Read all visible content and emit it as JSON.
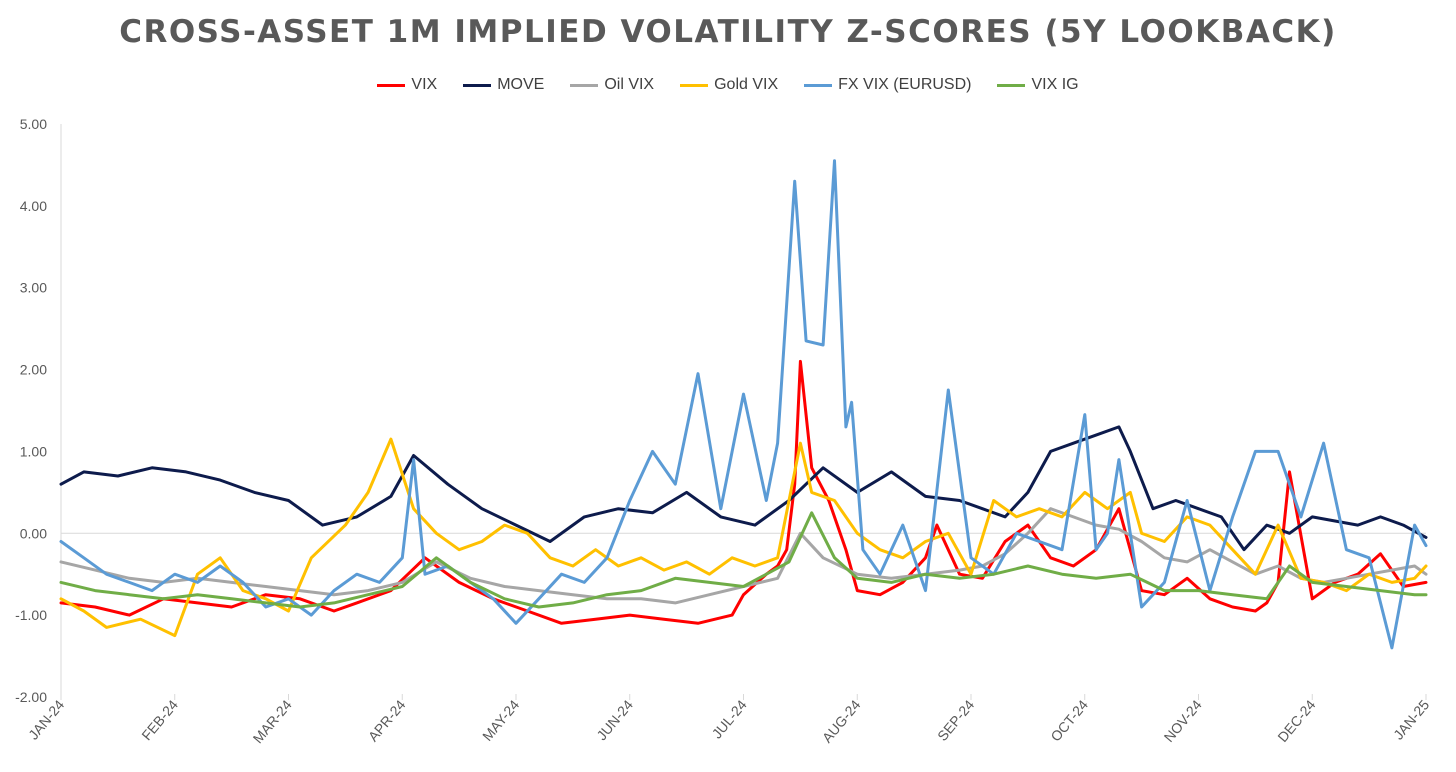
{
  "chart_data": {
    "type": "line",
    "title": "CROSS-ASSET 1M IMPLIED VOLATILITY Z-SCORES (5Y LOOKBACK)",
    "xlabel": "",
    "ylabel": "",
    "ylim": [
      -2.0,
      5.0
    ],
    "ytick_labels": [
      "5.00",
      "4.00",
      "3.00",
      "2.00",
      "1.00",
      "0.00",
      "-1.00",
      "-2.00"
    ],
    "ytick_values": [
      5,
      4,
      3,
      2,
      1,
      0,
      -1,
      -2
    ],
    "xlim": [
      0,
      12
    ],
    "xtick_labels": [
      "JAN-24",
      "FEB-24",
      "MAR-24",
      "APR-24",
      "MAY-24",
      "JUN-24",
      "JUL-24",
      "AUG-24",
      "SEP-24",
      "OCT-24",
      "NOV-24",
      "DEC-24",
      "JAN-25"
    ],
    "legend_position": "top-center",
    "grid": false,
    "series": [
      {
        "name": "VIX",
        "color": "#ff0000",
        "x": [
          0,
          0.3,
          0.6,
          0.9,
          1.2,
          1.5,
          1.8,
          2.1,
          2.4,
          2.6,
          2.9,
          3.2,
          3.5,
          3.8,
          4.1,
          4.4,
          4.7,
          5.0,
          5.3,
          5.6,
          5.9,
          6.0,
          6.2,
          6.3,
          6.38,
          6.45,
          6.5,
          6.6,
          6.75,
          6.9,
          7.0,
          7.2,
          7.4,
          7.6,
          7.7,
          7.9,
          8.1,
          8.3,
          8.5,
          8.7,
          8.9,
          9.1,
          9.3,
          9.5,
          9.7,
          9.9,
          10.1,
          10.3,
          10.5,
          10.6,
          10.7,
          10.8,
          11.0,
          11.2,
          11.4,
          11.6,
          11.8,
          12.0
        ],
        "values": [
          -0.85,
          -0.9,
          -1.0,
          -0.8,
          -0.85,
          -0.9,
          -0.75,
          -0.8,
          -0.95,
          -0.85,
          -0.7,
          -0.3,
          -0.6,
          -0.8,
          -0.95,
          -1.1,
          -1.05,
          -1.0,
          -1.05,
          -1.1,
          -1.0,
          -0.75,
          -0.5,
          -0.4,
          -0.2,
          0.6,
          2.1,
          0.8,
          0.4,
          -0.2,
          -0.7,
          -0.75,
          -0.6,
          -0.3,
          0.1,
          -0.5,
          -0.55,
          -0.1,
          0.1,
          -0.3,
          -0.4,
          -0.2,
          0.3,
          -0.7,
          -0.75,
          -0.55,
          -0.8,
          -0.9,
          -0.95,
          -0.85,
          -0.6,
          0.75,
          -0.8,
          -0.6,
          -0.5,
          -0.25,
          -0.65,
          -0.6
        ]
      },
      {
        "name": "MOVE",
        "color": "#0d1b4c",
        "x": [
          0,
          0.2,
          0.5,
          0.8,
          1.1,
          1.4,
          1.7,
          2.0,
          2.3,
          2.6,
          2.9,
          3.1,
          3.4,
          3.7,
          4.0,
          4.3,
          4.6,
          4.9,
          5.2,
          5.5,
          5.8,
          6.1,
          6.4,
          6.7,
          7.0,
          7.3,
          7.6,
          7.9,
          8.1,
          8.3,
          8.5,
          8.7,
          8.9,
          9.1,
          9.3,
          9.4,
          9.6,
          9.8,
          10.0,
          10.2,
          10.4,
          10.6,
          10.8,
          11.0,
          11.2,
          11.4,
          11.6,
          11.8,
          12.0
        ],
        "values": [
          0.6,
          0.75,
          0.7,
          0.8,
          0.75,
          0.65,
          0.5,
          0.4,
          0.1,
          0.2,
          0.45,
          0.95,
          0.6,
          0.3,
          0.1,
          -0.1,
          0.2,
          0.3,
          0.25,
          0.5,
          0.2,
          0.1,
          0.4,
          0.8,
          0.5,
          0.75,
          0.45,
          0.4,
          0.3,
          0.2,
          0.5,
          1.0,
          1.1,
          1.2,
          1.3,
          1.0,
          0.3,
          0.4,
          0.3,
          0.2,
          -0.2,
          0.1,
          0.0,
          0.2,
          0.15,
          0.1,
          0.2,
          0.1,
          -0.05
        ]
      },
      {
        "name": "Oil VIX",
        "color": "#a6a6a6",
        "x": [
          0,
          0.3,
          0.6,
          0.9,
          1.2,
          1.5,
          1.8,
          2.1,
          2.4,
          2.7,
          3.0,
          3.3,
          3.6,
          3.9,
          4.2,
          4.5,
          4.8,
          5.1,
          5.4,
          5.7,
          6.0,
          6.3,
          6.5,
          6.7,
          7.0,
          7.3,
          7.6,
          7.9,
          8.1,
          8.3,
          8.5,
          8.7,
          8.9,
          9.1,
          9.3,
          9.5,
          9.7,
          9.9,
          10.1,
          10.3,
          10.5,
          10.7,
          10.9,
          11.1,
          11.3,
          11.5,
          11.7,
          11.9,
          12.0
        ],
        "values": [
          -0.35,
          -0.45,
          -0.55,
          -0.6,
          -0.55,
          -0.6,
          -0.65,
          -0.7,
          -0.75,
          -0.7,
          -0.6,
          -0.35,
          -0.55,
          -0.65,
          -0.7,
          -0.75,
          -0.8,
          -0.8,
          -0.85,
          -0.75,
          -0.65,
          -0.55,
          -0.0,
          -0.3,
          -0.5,
          -0.55,
          -0.5,
          -0.45,
          -0.4,
          -0.25,
          0.0,
          0.3,
          0.2,
          0.1,
          0.05,
          -0.1,
          -0.3,
          -0.35,
          -0.2,
          -0.35,
          -0.5,
          -0.4,
          -0.55,
          -0.6,
          -0.55,
          -0.5,
          -0.45,
          -0.4,
          -0.5
        ]
      },
      {
        "name": "Gold VIX",
        "color": "#ffc000",
        "x": [
          0,
          0.2,
          0.4,
          0.7,
          1.0,
          1.2,
          1.4,
          1.6,
          1.8,
          2.0,
          2.2,
          2.5,
          2.7,
          2.9,
          3.1,
          3.3,
          3.5,
          3.7,
          3.9,
          4.1,
          4.3,
          4.5,
          4.7,
          4.9,
          5.1,
          5.3,
          5.5,
          5.7,
          5.9,
          6.1,
          6.3,
          6.5,
          6.6,
          6.8,
          7.0,
          7.2,
          7.4,
          7.6,
          7.8,
          8.0,
          8.2,
          8.4,
          8.6,
          8.8,
          9.0,
          9.2,
          9.4,
          9.5,
          9.7,
          9.9,
          10.1,
          10.3,
          10.5,
          10.7,
          10.9,
          11.1,
          11.3,
          11.5,
          11.7,
          11.9,
          12.0
        ],
        "values": [
          -0.8,
          -0.95,
          -1.15,
          -1.05,
          -1.25,
          -0.5,
          -0.3,
          -0.7,
          -0.8,
          -0.95,
          -0.3,
          0.1,
          0.5,
          1.15,
          0.3,
          0.0,
          -0.2,
          -0.1,
          0.1,
          0.0,
          -0.3,
          -0.4,
          -0.2,
          -0.4,
          -0.3,
          -0.45,
          -0.35,
          -0.5,
          -0.3,
          -0.4,
          -0.3,
          1.1,
          0.5,
          0.4,
          0.0,
          -0.2,
          -0.3,
          -0.1,
          0.0,
          -0.5,
          0.4,
          0.2,
          0.3,
          0.2,
          0.5,
          0.3,
          0.5,
          0.0,
          -0.1,
          0.2,
          0.1,
          -0.2,
          -0.5,
          0.1,
          -0.55,
          -0.6,
          -0.7,
          -0.5,
          -0.6,
          -0.55,
          -0.4
        ]
      },
      {
        "name": "FX VIX (EURUSD)",
        "color": "#5b9bd5",
        "x": [
          0,
          0.2,
          0.4,
          0.6,
          0.8,
          1.0,
          1.2,
          1.4,
          1.6,
          1.8,
          2.0,
          2.2,
          2.4,
          2.6,
          2.8,
          3.0,
          3.1,
          3.2,
          3.4,
          3.6,
          3.8,
          4.0,
          4.2,
          4.4,
          4.6,
          4.8,
          5.0,
          5.2,
          5.4,
          5.6,
          5.8,
          6.0,
          6.2,
          6.3,
          6.45,
          6.55,
          6.7,
          6.8,
          6.9,
          6.95,
          7.05,
          7.2,
          7.4,
          7.6,
          7.8,
          8.0,
          8.2,
          8.4,
          8.6,
          8.8,
          9.0,
          9.1,
          9.2,
          9.3,
          9.5,
          9.7,
          9.9,
          10.1,
          10.3,
          10.5,
          10.7,
          10.9,
          11.1,
          11.3,
          11.5,
          11.7,
          11.9,
          12.0
        ],
        "values": [
          -0.1,
          -0.3,
          -0.5,
          -0.6,
          -0.7,
          -0.5,
          -0.6,
          -0.4,
          -0.6,
          -0.9,
          -0.8,
          -1.0,
          -0.7,
          -0.5,
          -0.6,
          -0.3,
          0.9,
          -0.5,
          -0.4,
          -0.6,
          -0.8,
          -1.1,
          -0.8,
          -0.5,
          -0.6,
          -0.3,
          0.4,
          1.0,
          0.6,
          1.95,
          0.3,
          1.7,
          0.4,
          1.1,
          4.3,
          2.35,
          2.3,
          4.55,
          1.3,
          1.6,
          -0.2,
          -0.5,
          0.1,
          -0.7,
          1.75,
          -0.3,
          -0.5,
          0.0,
          -0.1,
          -0.2,
          1.45,
          -0.2,
          0.0,
          0.9,
          -0.9,
          -0.6,
          0.4,
          -0.7,
          0.2,
          1.0,
          1.0,
          0.2,
          1.1,
          -0.2,
          -0.3,
          -1.4,
          0.1,
          -0.15
        ]
      },
      {
        "name": "VIX IG",
        "color": "#70ad47",
        "x": [
          0,
          0.3,
          0.6,
          0.9,
          1.2,
          1.5,
          1.8,
          2.1,
          2.4,
          2.7,
          3.0,
          3.3,
          3.6,
          3.9,
          4.2,
          4.5,
          4.8,
          5.1,
          5.4,
          5.7,
          6.0,
          6.2,
          6.4,
          6.6,
          6.8,
          7.0,
          7.3,
          7.6,
          7.9,
          8.2,
          8.5,
          8.8,
          9.1,
          9.4,
          9.7,
          10.0,
          10.3,
          10.6,
          10.8,
          11.0,
          11.3,
          11.6,
          11.9,
          12.0
        ],
        "values": [
          -0.6,
          -0.7,
          -0.75,
          -0.8,
          -0.75,
          -0.8,
          -0.85,
          -0.9,
          -0.85,
          -0.75,
          -0.65,
          -0.3,
          -0.6,
          -0.8,
          -0.9,
          -0.85,
          -0.75,
          -0.7,
          -0.55,
          -0.6,
          -0.65,
          -0.5,
          -0.35,
          0.25,
          -0.3,
          -0.55,
          -0.6,
          -0.5,
          -0.55,
          -0.5,
          -0.4,
          -0.5,
          -0.55,
          -0.5,
          -0.7,
          -0.7,
          -0.75,
          -0.8,
          -0.4,
          -0.6,
          -0.65,
          -0.7,
          -0.75,
          -0.75
        ]
      }
    ]
  }
}
